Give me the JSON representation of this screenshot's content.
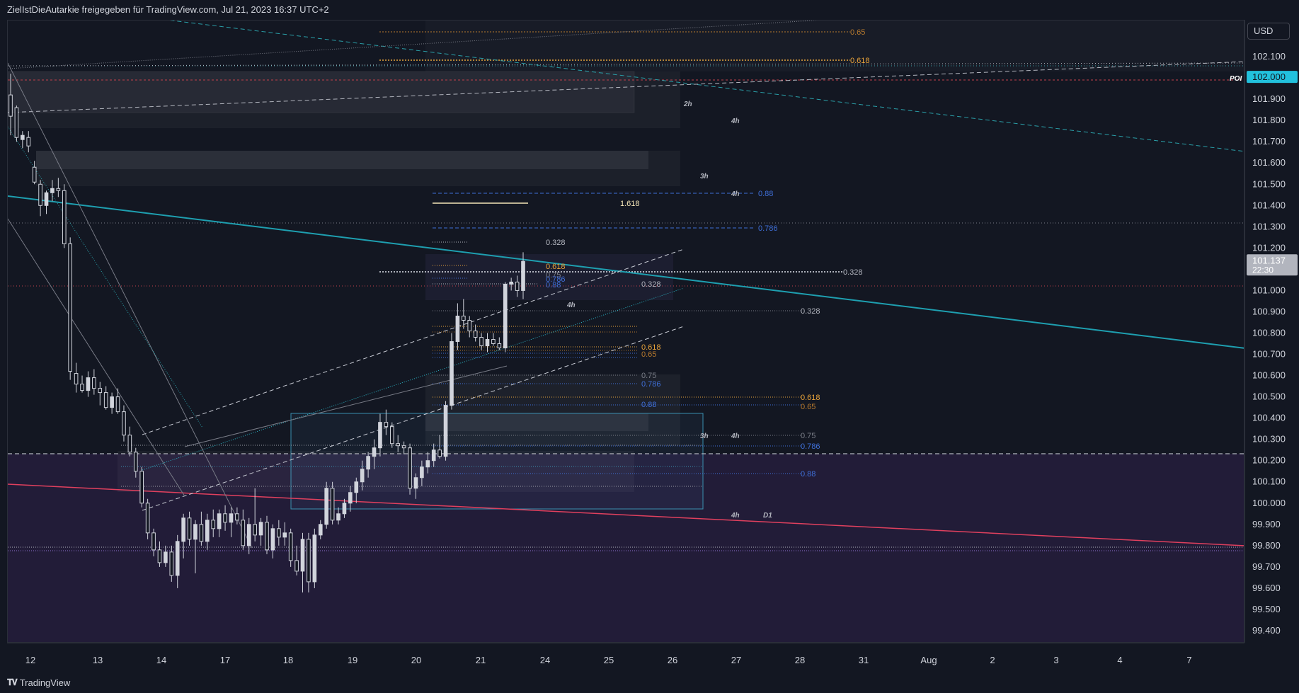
{
  "header": {
    "title": "ZielIstDieAutarkie freigegeben für TradingView.com, Jul 21, 2023 16:37 UTC+2"
  },
  "footer": {
    "brand": "TradingView",
    "logo_icon": "tradingview-logo-icon"
  },
  "price_axis": {
    "currency_label": "USD",
    "poi_label": "POI"
  },
  "chart_data": {
    "type": "candlestick",
    "title": "",
    "ylim": [
      99.34,
      102.27
    ],
    "y_ticks": [
      "102.100",
      "101.900",
      "101.800",
      "101.700",
      "101.600",
      "101.500",
      "101.400",
      "101.300",
      "101.200",
      "101.000",
      "100.900",
      "100.800",
      "100.700",
      "100.600",
      "100.500",
      "100.400",
      "100.300",
      "100.200",
      "100.100",
      "100.000",
      "99.900",
      "99.800",
      "99.700",
      "99.600",
      "99.500",
      "99.400"
    ],
    "x_ticks": [
      "12",
      "13",
      "14",
      "17",
      "18",
      "19",
      "20",
      "21",
      "24",
      "25",
      "26",
      "27",
      "28",
      "31",
      "Aug",
      "2",
      "3",
      "4",
      "7"
    ],
    "price_tags": [
      {
        "value": 102.0,
        "label": "102.000",
        "color": "#22c1dd"
      },
      {
        "value": 101.137,
        "label": "101.137",
        "sublabel": "22:30",
        "color": "#b2b5be"
      }
    ],
    "candles": [
      {
        "o": 101.92,
        "h": 102.02,
        "l": 101.73,
        "c": 101.82
      },
      {
        "o": 101.86,
        "h": 101.87,
        "l": 101.7,
        "c": 101.72
      },
      {
        "o": 101.71,
        "h": 101.75,
        "l": 101.67,
        "c": 101.73
      },
      {
        "o": 101.72,
        "h": 101.75,
        "l": 101.65,
        "c": 101.68
      },
      {
        "o": 101.58,
        "h": 101.61,
        "l": 101.5,
        "c": 101.51
      },
      {
        "o": 101.5,
        "h": 101.52,
        "l": 101.35,
        "c": 101.4
      },
      {
        "o": 101.4,
        "h": 101.47,
        "l": 101.36,
        "c": 101.46
      },
      {
        "o": 101.46,
        "h": 101.52,
        "l": 101.42,
        "c": 101.48
      },
      {
        "o": 101.48,
        "h": 101.53,
        "l": 101.44,
        "c": 101.47
      },
      {
        "o": 101.47,
        "h": 101.5,
        "l": 101.2,
        "c": 101.22
      },
      {
        "o": 101.22,
        "h": 101.25,
        "l": 100.58,
        "c": 100.62
      },
      {
        "o": 100.61,
        "h": 100.66,
        "l": 100.52,
        "c": 100.56
      },
      {
        "o": 100.56,
        "h": 100.6,
        "l": 100.52,
        "c": 100.53
      },
      {
        "o": 100.53,
        "h": 100.62,
        "l": 100.5,
        "c": 100.59
      },
      {
        "o": 100.59,
        "h": 100.63,
        "l": 100.51,
        "c": 100.54
      },
      {
        "o": 100.54,
        "h": 100.57,
        "l": 100.46,
        "c": 100.52
      },
      {
        "o": 100.52,
        "h": 100.55,
        "l": 100.44,
        "c": 100.45
      },
      {
        "o": 100.45,
        "h": 100.52,
        "l": 100.42,
        "c": 100.5
      },
      {
        "o": 100.5,
        "h": 100.54,
        "l": 100.42,
        "c": 100.43
      },
      {
        "o": 100.43,
        "h": 100.46,
        "l": 100.29,
        "c": 100.32
      },
      {
        "o": 100.32,
        "h": 100.36,
        "l": 100.22,
        "c": 100.24
      },
      {
        "o": 100.24,
        "h": 100.26,
        "l": 100.12,
        "c": 100.15
      },
      {
        "o": 100.15,
        "h": 100.17,
        "l": 99.98,
        "c": 100.0
      },
      {
        "o": 100.0,
        "h": 100.02,
        "l": 99.83,
        "c": 99.86
      },
      {
        "o": 99.86,
        "h": 99.88,
        "l": 99.75,
        "c": 99.78
      },
      {
        "o": 99.78,
        "h": 99.82,
        "l": 99.7,
        "c": 99.72
      },
      {
        "o": 99.72,
        "h": 99.8,
        "l": 99.7,
        "c": 99.77
      },
      {
        "o": 99.77,
        "h": 99.8,
        "l": 99.63,
        "c": 99.66
      },
      {
        "o": 99.66,
        "h": 99.85,
        "l": 99.6,
        "c": 99.82
      },
      {
        "o": 99.82,
        "h": 99.95,
        "l": 99.74,
        "c": 99.93
      },
      {
        "o": 99.93,
        "h": 99.96,
        "l": 99.8,
        "c": 99.83
      },
      {
        "o": 99.83,
        "h": 99.92,
        "l": 99.67,
        "c": 99.9
      },
      {
        "o": 99.9,
        "h": 99.96,
        "l": 99.8,
        "c": 99.82
      },
      {
        "o": 99.82,
        "h": 99.95,
        "l": 99.78,
        "c": 99.92
      },
      {
        "o": 99.92,
        "h": 99.97,
        "l": 99.84,
        "c": 99.88
      },
      {
        "o": 99.88,
        "h": 99.97,
        "l": 99.84,
        "c": 99.95
      },
      {
        "o": 99.95,
        "h": 99.99,
        "l": 99.87,
        "c": 99.91
      },
      {
        "o": 99.91,
        "h": 99.98,
        "l": 99.84,
        "c": 99.95
      },
      {
        "o": 99.95,
        "h": 99.98,
        "l": 99.9,
        "c": 99.92
      },
      {
        "o": 99.92,
        "h": 99.97,
        "l": 99.78,
        "c": 99.8
      },
      {
        "o": 99.8,
        "h": 99.93,
        "l": 99.76,
        "c": 99.9
      },
      {
        "o": 99.9,
        "h": 100.07,
        "l": 99.82,
        "c": 99.85
      },
      {
        "o": 99.85,
        "h": 99.93,
        "l": 99.8,
        "c": 99.91
      },
      {
        "o": 99.91,
        "h": 99.94,
        "l": 99.76,
        "c": 99.78
      },
      {
        "o": 99.78,
        "h": 99.9,
        "l": 99.74,
        "c": 99.88
      },
      {
        "o": 99.88,
        "h": 99.92,
        "l": 99.8,
        "c": 99.84
      },
      {
        "o": 99.84,
        "h": 99.91,
        "l": 99.8,
        "c": 99.86
      },
      {
        "o": 99.86,
        "h": 99.88,
        "l": 99.7,
        "c": 99.73
      },
      {
        "o": 99.73,
        "h": 99.8,
        "l": 99.66,
        "c": 99.68
      },
      {
        "o": 99.68,
        "h": 99.86,
        "l": 99.58,
        "c": 99.83
      },
      {
        "o": 99.83,
        "h": 99.86,
        "l": 99.58,
        "c": 99.63
      },
      {
        "o": 99.63,
        "h": 99.88,
        "l": 99.6,
        "c": 99.85
      },
      {
        "o": 99.85,
        "h": 99.92,
        "l": 99.83,
        "c": 99.9
      },
      {
        "o": 99.9,
        "h": 100.1,
        "l": 99.88,
        "c": 100.07
      },
      {
        "o": 100.07,
        "h": 100.1,
        "l": 99.9,
        "c": 99.92
      },
      {
        "o": 99.92,
        "h": 99.98,
        "l": 99.9,
        "c": 99.95
      },
      {
        "o": 99.95,
        "h": 100.02,
        "l": 99.93,
        "c": 100.0
      },
      {
        "o": 100.0,
        "h": 100.08,
        "l": 99.96,
        "c": 100.05
      },
      {
        "o": 100.05,
        "h": 100.12,
        "l": 100.0,
        "c": 100.1
      },
      {
        "o": 100.1,
        "h": 100.2,
        "l": 100.06,
        "c": 100.16
      },
      {
        "o": 100.16,
        "h": 100.24,
        "l": 100.12,
        "c": 100.22
      },
      {
        "o": 100.22,
        "h": 100.3,
        "l": 100.16,
        "c": 100.26
      },
      {
        "o": 100.26,
        "h": 100.42,
        "l": 100.22,
        "c": 100.38
      },
      {
        "o": 100.38,
        "h": 100.44,
        "l": 100.32,
        "c": 100.36
      },
      {
        "o": 100.36,
        "h": 100.38,
        "l": 100.26,
        "c": 100.28
      },
      {
        "o": 100.28,
        "h": 100.32,
        "l": 100.24,
        "c": 100.27
      },
      {
        "o": 100.27,
        "h": 100.29,
        "l": 100.23,
        "c": 100.26
      },
      {
        "o": 100.26,
        "h": 100.28,
        "l": 100.04,
        "c": 100.07
      },
      {
        "o": 100.07,
        "h": 100.14,
        "l": 100.02,
        "c": 100.12
      },
      {
        "o": 100.12,
        "h": 100.2,
        "l": 100.08,
        "c": 100.17
      },
      {
        "o": 100.17,
        "h": 100.24,
        "l": 100.14,
        "c": 100.2
      },
      {
        "o": 100.2,
        "h": 100.28,
        "l": 100.17,
        "c": 100.25
      },
      {
        "o": 100.25,
        "h": 100.32,
        "l": 100.21,
        "c": 100.22
      },
      {
        "o": 100.22,
        "h": 100.48,
        "l": 100.2,
        "c": 100.46
      },
      {
        "o": 100.46,
        "h": 100.8,
        "l": 100.44,
        "c": 100.76
      },
      {
        "o": 100.76,
        "h": 100.94,
        "l": 100.72,
        "c": 100.88
      },
      {
        "o": 100.88,
        "h": 100.96,
        "l": 100.82,
        "c": 100.86
      },
      {
        "o": 100.86,
        "h": 100.88,
        "l": 100.78,
        "c": 100.81
      },
      {
        "o": 100.81,
        "h": 100.84,
        "l": 100.76,
        "c": 100.78
      },
      {
        "o": 100.78,
        "h": 100.8,
        "l": 100.72,
        "c": 100.74
      },
      {
        "o": 100.74,
        "h": 100.8,
        "l": 100.71,
        "c": 100.77
      },
      {
        "o": 100.77,
        "h": 100.8,
        "l": 100.74,
        "c": 100.75
      },
      {
        "o": 100.75,
        "h": 100.78,
        "l": 100.72,
        "c": 100.73
      },
      {
        "o": 100.73,
        "h": 101.04,
        "l": 100.71,
        "c": 101.03
      },
      {
        "o": 101.03,
        "h": 101.06,
        "l": 101.0,
        "c": 101.04
      },
      {
        "o": 101.04,
        "h": 101.07,
        "l": 100.97,
        "c": 101.0
      },
      {
        "o": 101.0,
        "h": 101.18,
        "l": 100.96,
        "c": 101.137
      }
    ],
    "annotations": [
      {
        "text": "0.65",
        "color": "#b87a2e"
      },
      {
        "text": "0.618",
        "color": "#e8a33a"
      },
      {
        "text": "2h",
        "color": "#b2b5be"
      },
      {
        "text": "4h",
        "color": "#b2b5be"
      },
      {
        "text": "3h",
        "color": "#b2b5be"
      },
      {
        "text": "4h",
        "color": "#b2b5be"
      },
      {
        "text": "0.88",
        "color": "#3f6fd8"
      },
      {
        "text": "1.618",
        "color": "#f5e6b8"
      },
      {
        "text": "0.786",
        "color": "#3f6fd8"
      },
      {
        "text": "0.328",
        "color": "#b2b5be"
      },
      {
        "text": "0.618",
        "color": "#e8a33a"
      },
      {
        "text": "0.328",
        "color": "#b2b5be"
      },
      {
        "text": "0.75",
        "color": "#7a7e88"
      },
      {
        "text": "0.786",
        "color": "#3f6fd8"
      },
      {
        "text": "0.88",
        "color": "#3f6fd8"
      },
      {
        "text": "0.328",
        "color": "#b2b5be"
      },
      {
        "text": "4h",
        "color": "#b2b5be"
      },
      {
        "text": "0.328",
        "color": "#b2b5be"
      },
      {
        "text": "0.618",
        "color": "#e8a33a"
      },
      {
        "text": "0.65",
        "color": "#b87a2e"
      },
      {
        "text": "0.75",
        "color": "#7a7e88"
      },
      {
        "text": "0.786",
        "color": "#3f6fd8"
      },
      {
        "text": "0.88",
        "color": "#3f6fd8"
      },
      {
        "text": "0.618",
        "color": "#e8a33a"
      },
      {
        "text": "0.65",
        "color": "#b87a2e"
      },
      {
        "text": "3h",
        "color": "#b2b5be"
      },
      {
        "text": "4h",
        "color": "#b2b5be"
      },
      {
        "text": "0.75",
        "color": "#7a7e88"
      },
      {
        "text": "0.786",
        "color": "#3f6fd8"
      },
      {
        "text": "0.88",
        "color": "#3f6fd8"
      },
      {
        "text": "4h",
        "color": "#b2b5be"
      },
      {
        "text": "D1",
        "color": "#b2b5be"
      }
    ],
    "colors": {
      "background": "#131722",
      "candle": "#d1d4dc",
      "trendline": "#1e9fb0",
      "support_line": "#e0405e",
      "zone_fill": "#2b2140",
      "fib_orange": "#e8a33a",
      "fib_blue": "#3f6fd8"
    }
  }
}
